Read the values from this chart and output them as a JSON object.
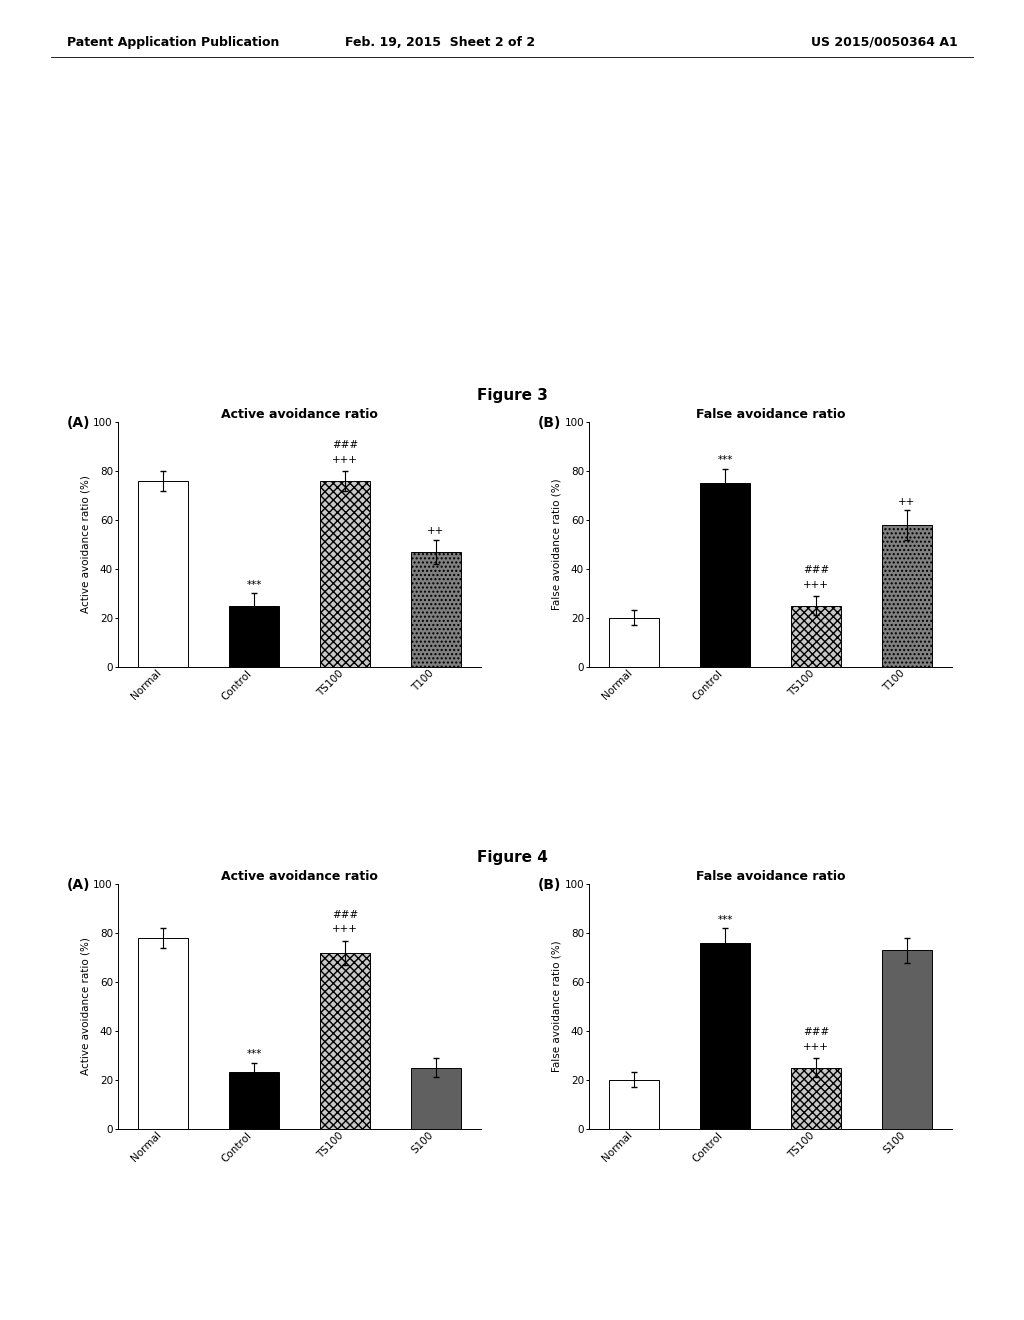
{
  "header_left": "Patent Application Publication",
  "header_center": "Feb. 19, 2015  Sheet 2 of 2",
  "header_right": "US 2015/0050364 A1",
  "fig3_title": "Figure 3",
  "fig4_title": "Figure 4",
  "fig3A": {
    "label": "(A)",
    "title": "Active avoidance ratio",
    "ylabel": "Active avoidance ratio (%)",
    "categories": [
      "Normal",
      "Control",
      "TS100",
      "T100"
    ],
    "values": [
      76,
      25,
      76,
      47
    ],
    "errors": [
      4,
      5,
      4,
      5
    ],
    "colors": [
      "white",
      "black",
      "gray_crosshatch",
      "dark_dotted"
    ],
    "annotations": [
      "",
      "***",
      "###\n+++",
      "++"
    ],
    "ylim": [
      0,
      100
    ]
  },
  "fig3B": {
    "label": "(B)",
    "title": "False avoidance ratio",
    "ylabel": "False avoidance ratio (%)",
    "categories": [
      "Normal",
      "Control",
      "TS100",
      "T100"
    ],
    "values": [
      20,
      75,
      25,
      58
    ],
    "errors": [
      3,
      6,
      4,
      6
    ],
    "colors": [
      "white",
      "black",
      "gray_crosshatch",
      "dark_dotted"
    ],
    "annotations": [
      "",
      "***",
      "###\n+++",
      "++"
    ],
    "ylim": [
      0,
      100
    ]
  },
  "fig4A": {
    "label": "(A)",
    "title": "Active avoidance ratio",
    "ylabel": "Active avoidance ratio (%)",
    "categories": [
      "Normal",
      "Control",
      "TS100",
      "S100"
    ],
    "values": [
      78,
      23,
      72,
      25
    ],
    "errors": [
      4,
      4,
      5,
      4
    ],
    "colors": [
      "white",
      "black",
      "gray_crosshatch",
      "med_gray"
    ],
    "annotations": [
      "",
      "***",
      "###\n+++",
      ""
    ],
    "ylim": [
      0,
      100
    ]
  },
  "fig4B": {
    "label": "(B)",
    "title": "False avoidance ratio",
    "ylabel": "False avoidance ratio (%)",
    "categories": [
      "Normal",
      "Control",
      "TS100",
      "S100"
    ],
    "values": [
      20,
      76,
      25,
      73
    ],
    "errors": [
      3,
      6,
      4,
      5
    ],
    "colors": [
      "white",
      "black",
      "gray_crosshatch",
      "med_gray"
    ],
    "annotations": [
      "",
      "***",
      "###\n+++",
      ""
    ],
    "ylim": [
      0,
      100
    ]
  },
  "background_color": "#ffffff",
  "bar_width": 0.55,
  "fontsize_title": 9,
  "fontsize_label": 7.5,
  "fontsize_tick": 7.5,
  "fontsize_annot": 7.5,
  "fontsize_header": 9,
  "fontsize_panel": 10,
  "fontsize_fig": 11
}
